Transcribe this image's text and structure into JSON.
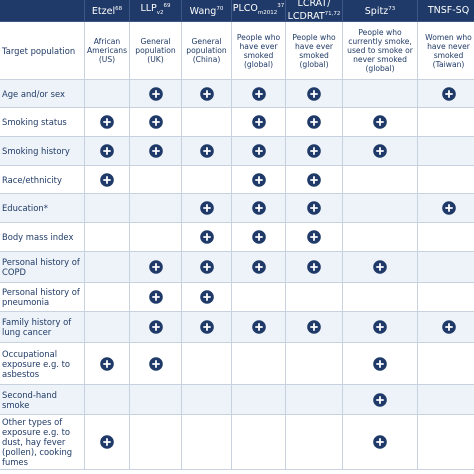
{
  "table": {
    "columns": [
      {
        "name": "Etzel",
        "sub": "",
        "sup": "68"
      },
      {
        "name": "LLP",
        "sub": "v2",
        "sup": "69"
      },
      {
        "name": "Wang",
        "sub": "",
        "sup": "70"
      },
      {
        "name": "PLCO",
        "sub": "m2012",
        "sup": "37"
      },
      {
        "name": "LCRAT/ LCDRAT",
        "sub": "",
        "sup": "71,72"
      },
      {
        "name": "Spitz",
        "sub": "",
        "sup": "73"
      },
      {
        "name": "TNSF-SQ",
        "sub": "",
        "sup": ""
      }
    ],
    "target_label": "Target population",
    "targets": [
      "African Americans (US)",
      "General population (UK)",
      "General population (China)",
      "People who have ever smoked (global)",
      "People who have ever smoked (global)",
      "People who currently smoke, used to smoke or never smoked (global)",
      "Women who have never smoked (Taiwan)"
    ],
    "rows": [
      {
        "label": "Age and/or sex",
        "cells": [
          false,
          true,
          true,
          true,
          true,
          false,
          true
        ]
      },
      {
        "label": "Smoking status",
        "cells": [
          true,
          true,
          false,
          true,
          true,
          true,
          false
        ]
      },
      {
        "label": "Smoking history",
        "cells": [
          true,
          true,
          true,
          true,
          true,
          true,
          false
        ]
      },
      {
        "label": "Race/ethnicity",
        "cells": [
          true,
          false,
          false,
          true,
          true,
          false,
          false
        ]
      },
      {
        "label": "Education*",
        "cells": [
          false,
          false,
          true,
          true,
          true,
          false,
          true
        ]
      },
      {
        "label": "Body mass index",
        "cells": [
          false,
          false,
          true,
          true,
          true,
          false,
          false
        ]
      },
      {
        "label": "Personal history of COPD",
        "cells": [
          false,
          true,
          true,
          true,
          true,
          true,
          false
        ]
      },
      {
        "label": "Personal history of pneumonia",
        "cells": [
          false,
          true,
          true,
          false,
          false,
          false,
          false
        ]
      },
      {
        "label": "Family history of lung cancer",
        "cells": [
          false,
          true,
          true,
          true,
          true,
          true,
          true
        ]
      },
      {
        "label": "Occupational exposure e.g. to asbestos",
        "cells": [
          true,
          true,
          false,
          false,
          false,
          true,
          false
        ]
      },
      {
        "label": "Second-hand smoke",
        "cells": [
          false,
          false,
          false,
          false,
          false,
          true,
          false
        ]
      },
      {
        "label": "Other types of exposure e.g. to dust, hay fever (pollen), cooking fumes",
        "cells": [
          true,
          false,
          false,
          false,
          false,
          true,
          false
        ]
      }
    ]
  }
}
